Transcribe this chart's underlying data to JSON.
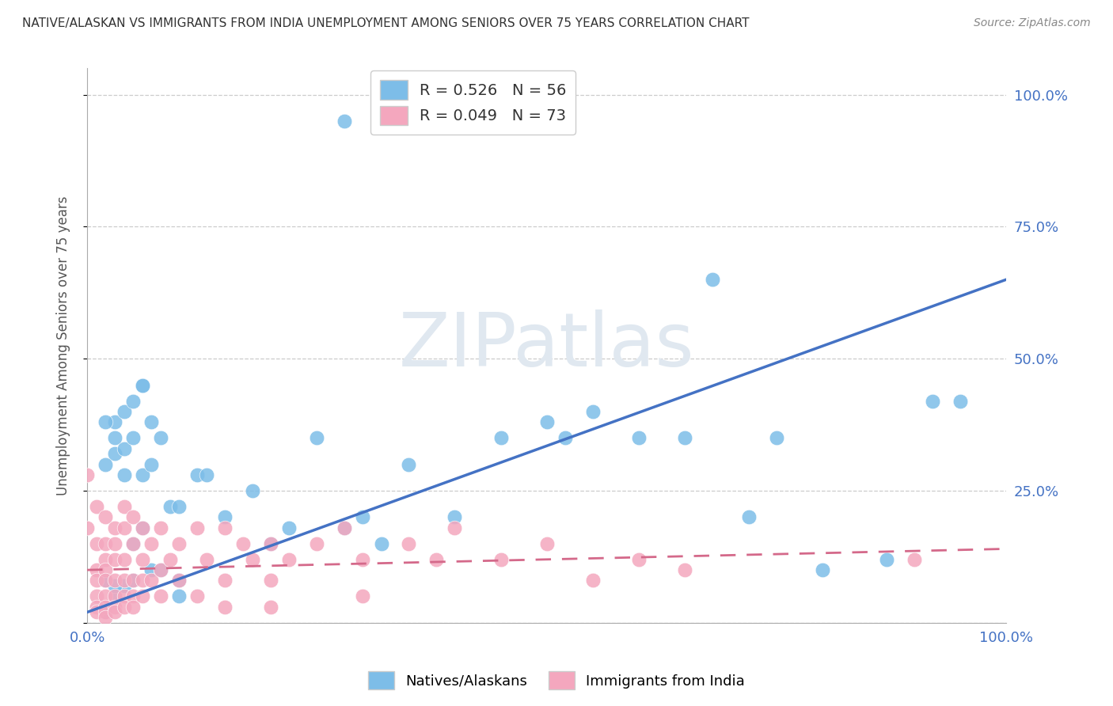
{
  "title": "NATIVE/ALASKAN VS IMMIGRANTS FROM INDIA UNEMPLOYMENT AMONG SENIORS OVER 75 YEARS CORRELATION CHART",
  "source": "Source: ZipAtlas.com",
  "ylabel": "Unemployment Among Seniors over 75 years",
  "legend_blue_R": "R = 0.526",
  "legend_blue_N": "N = 56",
  "legend_pink_R": "R = 0.049",
  "legend_pink_N": "N = 73",
  "blue_color": "#7dbde8",
  "pink_color": "#f4a7be",
  "trendline_blue": "#4472c4",
  "trendline_pink": "#d4698a",
  "blue_scatter_x": [
    0.03,
    0.28,
    0.03,
    0.03,
    0.04,
    0.04,
    0.05,
    0.05,
    0.06,
    0.06,
    0.07,
    0.07,
    0.08,
    0.09,
    0.1,
    0.12,
    0.13,
    0.15,
    0.18,
    0.2,
    0.22,
    0.25,
    0.28,
    0.3,
    0.32,
    0.35,
    0.4,
    0.45,
    0.5,
    0.52,
    0.55,
    0.6,
    0.65,
    0.68,
    0.72,
    0.75,
    0.8,
    0.87,
    0.92,
    0.95,
    0.02,
    0.03,
    0.04,
    0.05,
    0.06,
    0.06,
    0.07,
    0.08,
    0.1,
    0.1,
    0.02,
    0.04,
    0.05,
    0.03,
    0.02,
    0.02
  ],
  "blue_scatter_y": [
    0.38,
    0.95,
    0.32,
    0.05,
    0.4,
    0.07,
    0.42,
    0.08,
    0.45,
    0.18,
    0.38,
    0.1,
    0.35,
    0.22,
    0.08,
    0.28,
    0.28,
    0.2,
    0.25,
    0.15,
    0.18,
    0.35,
    0.18,
    0.2,
    0.15,
    0.3,
    0.2,
    0.35,
    0.38,
    0.35,
    0.4,
    0.35,
    0.35,
    0.65,
    0.2,
    0.35,
    0.1,
    0.12,
    0.42,
    0.42,
    0.3,
    0.35,
    0.33,
    0.35,
    0.28,
    0.45,
    0.3,
    0.1,
    0.22,
    0.05,
    0.02,
    0.28,
    0.15,
    0.07,
    0.08,
    0.38
  ],
  "pink_scatter_x": [
    0.0,
    0.0,
    0.01,
    0.01,
    0.01,
    0.01,
    0.01,
    0.01,
    0.01,
    0.02,
    0.02,
    0.02,
    0.02,
    0.02,
    0.02,
    0.02,
    0.02,
    0.02,
    0.03,
    0.03,
    0.03,
    0.03,
    0.03,
    0.03,
    0.03,
    0.04,
    0.04,
    0.04,
    0.04,
    0.04,
    0.04,
    0.05,
    0.05,
    0.05,
    0.05,
    0.05,
    0.06,
    0.06,
    0.06,
    0.06,
    0.07,
    0.07,
    0.08,
    0.08,
    0.08,
    0.09,
    0.1,
    0.1,
    0.12,
    0.12,
    0.13,
    0.15,
    0.15,
    0.15,
    0.17,
    0.18,
    0.2,
    0.2,
    0.2,
    0.22,
    0.25,
    0.28,
    0.3,
    0.3,
    0.35,
    0.38,
    0.4,
    0.45,
    0.5,
    0.55,
    0.6,
    0.65,
    0.9
  ],
  "pink_scatter_y": [
    0.28,
    0.18,
    0.22,
    0.15,
    0.1,
    0.08,
    0.05,
    0.03,
    0.02,
    0.2,
    0.15,
    0.12,
    0.1,
    0.08,
    0.05,
    0.03,
    0.02,
    0.01,
    0.18,
    0.15,
    0.12,
    0.08,
    0.05,
    0.03,
    0.02,
    0.22,
    0.18,
    0.12,
    0.08,
    0.05,
    0.03,
    0.2,
    0.15,
    0.08,
    0.05,
    0.03,
    0.18,
    0.12,
    0.08,
    0.05,
    0.15,
    0.08,
    0.18,
    0.1,
    0.05,
    0.12,
    0.15,
    0.08,
    0.18,
    0.05,
    0.12,
    0.18,
    0.08,
    0.03,
    0.15,
    0.12,
    0.15,
    0.08,
    0.03,
    0.12,
    0.15,
    0.18,
    0.12,
    0.05,
    0.15,
    0.12,
    0.18,
    0.12,
    0.15,
    0.08,
    0.12,
    0.1,
    0.12
  ],
  "blue_trend_x0": 0.0,
  "blue_trend_y0": 0.02,
  "blue_trend_x1": 1.0,
  "blue_trend_y1": 0.65,
  "pink_trend_x0": 0.0,
  "pink_trend_y0": 0.1,
  "pink_trend_x1": 1.0,
  "pink_trend_y1": 0.14,
  "xlim": [
    0,
    1.0
  ],
  "ylim": [
    0,
    1.05
  ],
  "yticks": [
    0.0,
    0.25,
    0.5,
    0.75,
    1.0
  ],
  "ytick_labels": [
    "",
    "25.0%",
    "50.0%",
    "75.0%",
    "100.0%"
  ],
  "xticks": [
    0.0,
    0.25,
    0.5,
    0.75,
    1.0
  ],
  "xtick_labels_show": [
    "0.0%",
    "",
    "",
    "",
    "100.0%"
  ]
}
